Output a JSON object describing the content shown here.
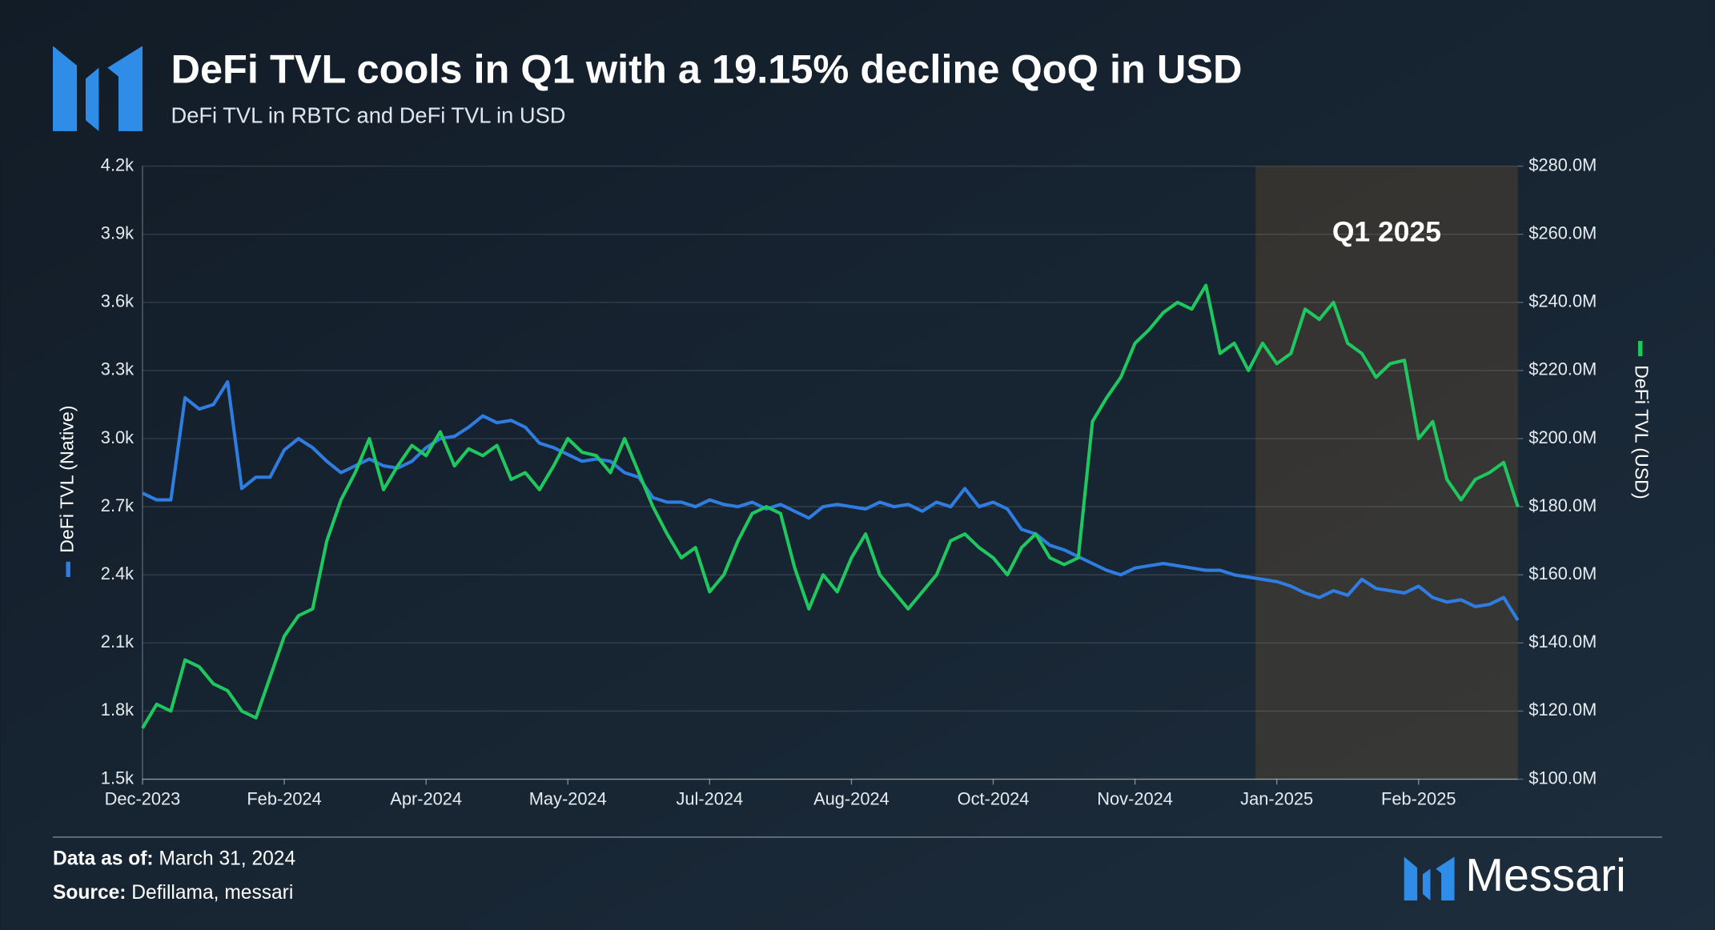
{
  "chart_data": {
    "type": "line",
    "title": "DeFi TVL cools in Q1 with a 19.15% decline QoQ in USD",
    "subtitle": "DeFi TVL in RBTC and DeFi TVL in USD",
    "xlim": [
      0,
      97
    ],
    "xticks": [
      {
        "value": 0,
        "label": "Dec-2023"
      },
      {
        "value": 10,
        "label": "Feb-2024"
      },
      {
        "value": 20,
        "label": "Apr-2024"
      },
      {
        "value": 30,
        "label": "May-2024"
      },
      {
        "value": 40,
        "label": "Jul-2024"
      },
      {
        "value": 50,
        "label": "Aug-2024"
      },
      {
        "value": 60,
        "label": "Oct-2024"
      },
      {
        "value": 70,
        "label": "Nov-2024"
      },
      {
        "value": 80,
        "label": "Jan-2025"
      },
      {
        "value": 90,
        "label": "Feb-2025"
      }
    ],
    "ylim": [
      1500,
      4200
    ],
    "yticks": [
      {
        "value": 1500,
        "label": "1.5k"
      },
      {
        "value": 1800,
        "label": "1.8k"
      },
      {
        "value": 2100,
        "label": "2.1k"
      },
      {
        "value": 2400,
        "label": "2.4k"
      },
      {
        "value": 2700,
        "label": "2.7k"
      },
      {
        "value": 3000,
        "label": "3.0k"
      },
      {
        "value": 3300,
        "label": "3.3k"
      },
      {
        "value": 3600,
        "label": "3.6k"
      },
      {
        "value": 3900,
        "label": "3.9k"
      },
      {
        "value": 4200,
        "label": "4.2k"
      }
    ],
    "y2lim": [
      100000000,
      280000000
    ],
    "y2ticks": [
      {
        "value": 100000000,
        "label": "$100.0M"
      },
      {
        "value": 120000000,
        "label": "$120.0M"
      },
      {
        "value": 140000000,
        "label": "$140.0M"
      },
      {
        "value": 160000000,
        "label": "$160.0M"
      },
      {
        "value": 180000000,
        "label": "$180.0M"
      },
      {
        "value": 200000000,
        "label": "$200.0M"
      },
      {
        "value": 220000000,
        "label": "$220.0M"
      },
      {
        "value": 240000000,
        "label": "$240.0M"
      },
      {
        "value": 260000000,
        "label": "$260.0M"
      },
      {
        "value": 280000000,
        "label": "$280.0M"
      }
    ],
    "grid": true,
    "annotations": [
      {
        "label": "Q1 2025",
        "x0": 78.5,
        "x1": 97
      }
    ],
    "series": [
      {
        "name": "DeFi TVL (Native)",
        "color": "#2f7de1",
        "axis": "y",
        "values": [
          2760,
          2730,
          2730,
          3180,
          3130,
          3150,
          3250,
          2780,
          2830,
          2830,
          2950,
          3000,
          2960,
          2900,
          2850,
          2880,
          2910,
          2880,
          2870,
          2900,
          2960,
          3000,
          3010,
          3050,
          3100,
          3070,
          3080,
          3050,
          2980,
          2960,
          2930,
          2900,
          2910,
          2900,
          2850,
          2830,
          2740,
          2720,
          2720,
          2700,
          2730,
          2710,
          2700,
          2720,
          2690,
          2710,
          2680,
          2650,
          2700,
          2710,
          2700,
          2690,
          2720,
          2700,
          2710,
          2680,
          2720,
          2700,
          2780,
          2700,
          2720,
          2690,
          2600,
          2580,
          2530,
          2510,
          2480,
          2450,
          2420,
          2400,
          2430,
          2440,
          2450,
          2440,
          2430,
          2420,
          2420,
          2400,
          2390,
          2380,
          2370,
          2350,
          2320,
          2300,
          2330,
          2310,
          2380,
          2340,
          2330,
          2320,
          2350,
          2300,
          2280,
          2290,
          2260,
          2270,
          2300,
          2200
        ]
      },
      {
        "name": "DeFi TVL (USD)",
        "color": "#1fc85f",
        "axis": "y2",
        "values": [
          115000000,
          122000000,
          120000000,
          135000000,
          133000000,
          128000000,
          126000000,
          120000000,
          118000000,
          130000000,
          142000000,
          148000000,
          150000000,
          170000000,
          182000000,
          190000000,
          200000000,
          185000000,
          192000000,
          198000000,
          195000000,
          202000000,
          192000000,
          197000000,
          195000000,
          198000000,
          188000000,
          190000000,
          185000000,
          192000000,
          200000000,
          196000000,
          195000000,
          190000000,
          200000000,
          190000000,
          180000000,
          172000000,
          165000000,
          168000000,
          155000000,
          160000000,
          170000000,
          178000000,
          180000000,
          178000000,
          162000000,
          150000000,
          160000000,
          155000000,
          165000000,
          172000000,
          160000000,
          155000000,
          150000000,
          155000000,
          160000000,
          170000000,
          172000000,
          168000000,
          165000000,
          160000000,
          168000000,
          172000000,
          165000000,
          163000000,
          165000000,
          205000000,
          212000000,
          218000000,
          228000000,
          232000000,
          237000000,
          240000000,
          238000000,
          245000000,
          225000000,
          228000000,
          220000000,
          228000000,
          222000000,
          225000000,
          238000000,
          235000000,
          240000000,
          228000000,
          225000000,
          218000000,
          222000000,
          223000000,
          200000000,
          205000000,
          188000000,
          182000000,
          188000000,
          190000000,
          193000000,
          180000000
        ]
      }
    ]
  },
  "footer": {
    "date_label": "Data as of:",
    "date": "March 31, 2024",
    "source_label": "Source:",
    "source": "Defillama, messari",
    "brand": "Messari"
  }
}
